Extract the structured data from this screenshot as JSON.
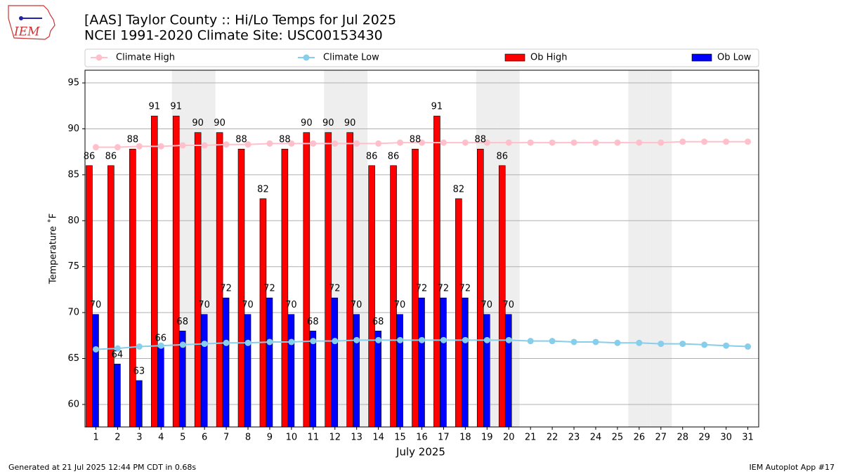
{
  "logo": {
    "text": "IEM"
  },
  "chart_data": {
    "type": "bar",
    "title": "[AAS] Taylor County :: Hi/Lo Temps for Jul 2025",
    "subtitle": "NCEI 1991-2020 Climate Site: USC00153430",
    "xlabel": "July 2025",
    "ylabel": "Temperature ˚F",
    "categories": [
      "1",
      "2",
      "3",
      "4",
      "5",
      "6",
      "7",
      "8",
      "9",
      "10",
      "11",
      "12",
      "13",
      "14",
      "15",
      "16",
      "17",
      "18",
      "19",
      "20",
      "21",
      "22",
      "23",
      "24",
      "25",
      "26",
      "27",
      "28",
      "29",
      "30",
      "31"
    ],
    "ylim": [
      57.55,
      96.38
    ],
    "yticks": [
      60,
      65,
      70,
      75,
      80,
      85,
      90,
      95
    ],
    "grid": true,
    "shaded": [
      5,
      6,
      12,
      13,
      19,
      20,
      26,
      27
    ],
    "shade_color": "#eeeeee",
    "legend": "top",
    "series": [
      {
        "name": "Climate High",
        "type": "line",
        "color": "#ffc0cb",
        "values": [
          88.0,
          88.0,
          88.1,
          88.1,
          88.2,
          88.2,
          88.3,
          88.3,
          88.4,
          88.4,
          88.4,
          88.4,
          88.4,
          88.4,
          88.5,
          88.5,
          88.5,
          88.5,
          88.5,
          88.5,
          88.5,
          88.5,
          88.5,
          88.5,
          88.5,
          88.5,
          88.5,
          88.6,
          88.6,
          88.6,
          88.6
        ]
      },
      {
        "name": "Climate Low",
        "type": "line",
        "color": "#87ceeb",
        "values": [
          66.0,
          66.1,
          66.3,
          66.4,
          66.5,
          66.6,
          66.7,
          66.7,
          66.8,
          66.8,
          66.9,
          66.9,
          67.0,
          67.0,
          67.0,
          67.0,
          67.0,
          67.0,
          67.0,
          67.0,
          66.9,
          66.9,
          66.8,
          66.8,
          66.7,
          66.7,
          66.6,
          66.6,
          66.5,
          66.4,
          66.3
        ]
      },
      {
        "name": "Ob High",
        "type": "bar",
        "color": "#ff0000",
        "values": [
          86,
          86,
          87.8,
          91.4,
          91.4,
          89.6,
          89.6,
          87.8,
          82.4,
          87.8,
          89.6,
          89.6,
          89.6,
          86,
          86,
          87.8,
          91.4,
          82.4,
          87.8,
          86,
          null,
          null,
          null,
          null,
          null,
          null,
          null,
          null,
          null,
          null,
          null
        ],
        "value_labels": [
          "86",
          "86",
          "88",
          "91",
          "91",
          "90",
          "90",
          "88",
          "82",
          "88",
          "90",
          "90",
          "90",
          "86",
          "86",
          "88",
          "91",
          "82",
          "88",
          "86",
          null,
          null,
          null,
          null,
          null,
          null,
          null,
          null,
          null,
          null,
          null
        ]
      },
      {
        "name": "Ob Low",
        "type": "bar",
        "color": "#0000ff",
        "values": [
          69.8,
          64.4,
          62.6,
          66.2,
          68,
          69.8,
          71.6,
          69.8,
          71.6,
          69.8,
          68,
          71.6,
          69.8,
          68,
          69.8,
          71.6,
          71.6,
          71.6,
          69.8,
          69.8,
          null,
          null,
          null,
          null,
          null,
          null,
          null,
          null,
          null,
          null,
          null
        ],
        "value_labels": [
          "70",
          "64",
          "63",
          "66",
          "68",
          "70",
          "72",
          "70",
          "72",
          "70",
          "68",
          "72",
          "70",
          "68",
          "70",
          "72",
          "72",
          "72",
          "70",
          "70",
          null,
          null,
          null,
          null,
          null,
          null,
          null,
          null,
          null,
          null,
          null
        ]
      }
    ]
  },
  "footer": {
    "left": "Generated at 21 Jul 2025 12:44 PM CDT in 0.68s",
    "right": "IEM Autoplot App #17"
  }
}
